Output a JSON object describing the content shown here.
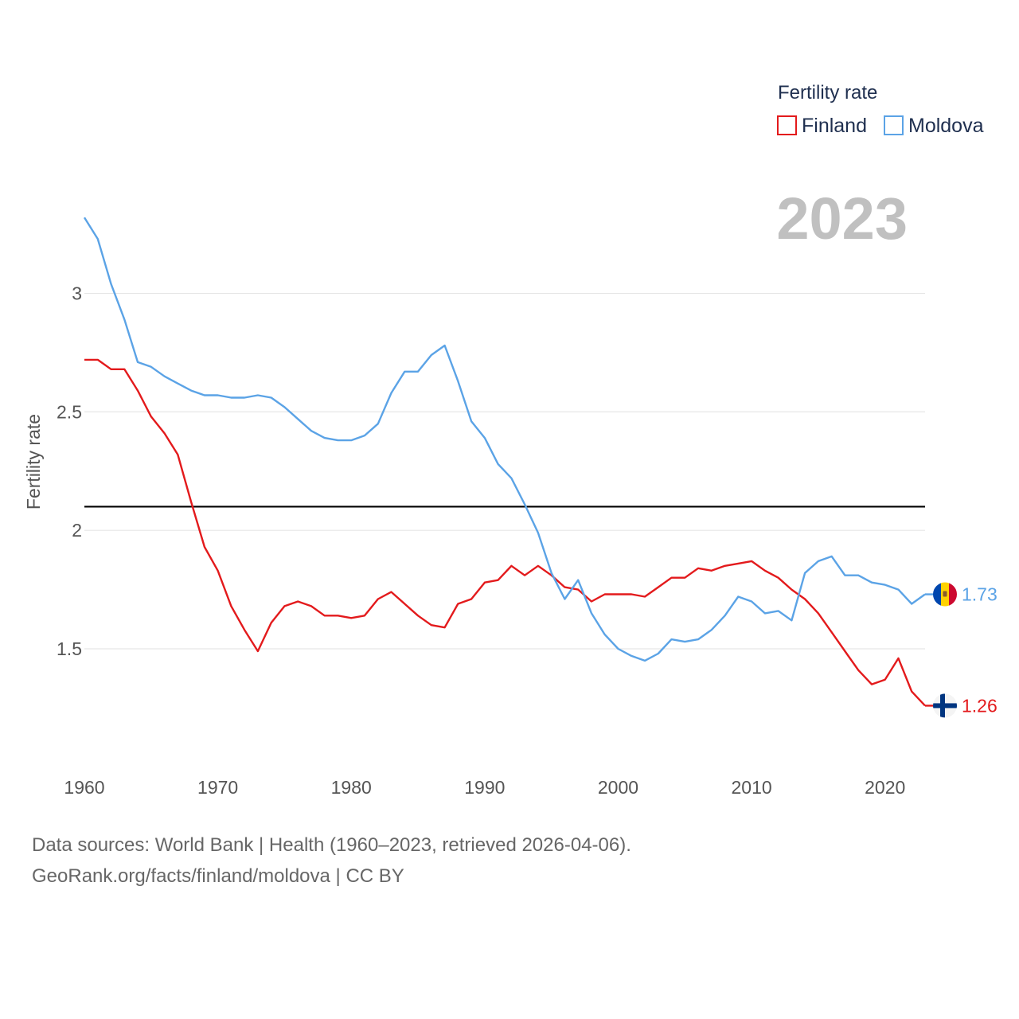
{
  "chart_data": {
    "type": "line",
    "title": "Fertility rate",
    "ylabel": "Fertility rate",
    "xlabel": "",
    "current_year": "2023",
    "x": [
      1960,
      1961,
      1962,
      1963,
      1964,
      1965,
      1966,
      1967,
      1968,
      1969,
      1970,
      1971,
      1972,
      1973,
      1974,
      1975,
      1976,
      1977,
      1978,
      1979,
      1980,
      1981,
      1982,
      1983,
      1984,
      1985,
      1986,
      1987,
      1988,
      1989,
      1990,
      1991,
      1992,
      1993,
      1994,
      1995,
      1996,
      1997,
      1998,
      1999,
      2000,
      2001,
      2002,
      2003,
      2004,
      2005,
      2006,
      2007,
      2008,
      2009,
      2010,
      2011,
      2012,
      2013,
      2014,
      2015,
      2016,
      2017,
      2018,
      2019,
      2020,
      2021,
      2022,
      2023
    ],
    "xlim": [
      1960,
      2023
    ],
    "ylim": [
      1.08,
      3.6
    ],
    "x_ticks": [
      1960,
      1970,
      1980,
      1990,
      2000,
      2010,
      2020
    ],
    "y_ticks": [
      1.5,
      2,
      2.5,
      3
    ],
    "y_tick_labels": [
      "1.5",
      "2",
      "2.5",
      "3"
    ],
    "reference_line": 2.1,
    "series": [
      {
        "name": "Finland",
        "color": "#e31a1c",
        "flag": "finland-flag",
        "end_label": "1.26",
        "values": [
          2.72,
          2.72,
          2.68,
          2.68,
          2.59,
          2.48,
          2.41,
          2.32,
          2.12,
          1.93,
          1.83,
          1.68,
          1.58,
          1.49,
          1.61,
          1.68,
          1.7,
          1.68,
          1.64,
          1.64,
          1.63,
          1.64,
          1.71,
          1.74,
          1.69,
          1.64,
          1.6,
          1.59,
          1.69,
          1.71,
          1.78,
          1.79,
          1.85,
          1.81,
          1.85,
          1.81,
          1.76,
          1.75,
          1.7,
          1.73,
          1.73,
          1.73,
          1.72,
          1.76,
          1.8,
          1.8,
          1.84,
          1.83,
          1.85,
          1.86,
          1.87,
          1.83,
          1.8,
          1.75,
          1.71,
          1.65,
          1.57,
          1.49,
          1.41,
          1.35,
          1.37,
          1.46,
          1.32,
          1.26
        ]
      },
      {
        "name": "Moldova",
        "color": "#5ba3e6",
        "flag": "moldova-flag",
        "end_label": "1.73",
        "values": [
          3.32,
          3.23,
          3.04,
          2.89,
          2.71,
          2.69,
          2.65,
          2.62,
          2.59,
          2.57,
          2.57,
          2.56,
          2.56,
          2.57,
          2.56,
          2.52,
          2.47,
          2.42,
          2.39,
          2.38,
          2.38,
          2.4,
          2.45,
          2.58,
          2.67,
          2.67,
          2.74,
          2.78,
          2.63,
          2.46,
          2.39,
          2.28,
          2.22,
          2.11,
          1.99,
          1.82,
          1.71,
          1.79,
          1.65,
          1.56,
          1.5,
          1.47,
          1.45,
          1.48,
          1.54,
          1.53,
          1.54,
          1.58,
          1.64,
          1.72,
          1.7,
          1.65,
          1.66,
          1.62,
          1.82,
          1.87,
          1.89,
          1.81,
          1.81,
          1.78,
          1.77,
          1.75,
          1.69,
          1.73
        ]
      }
    ]
  },
  "legend": {
    "title": "Fertility rate",
    "items": [
      "Finland",
      "Moldova"
    ]
  },
  "sources": {
    "line1": "Data sources: World Bank | Health (1960–2023, retrieved 2026-04-06).",
    "line2": "GeoRank.org/facts/finland/moldova | CC BY"
  }
}
